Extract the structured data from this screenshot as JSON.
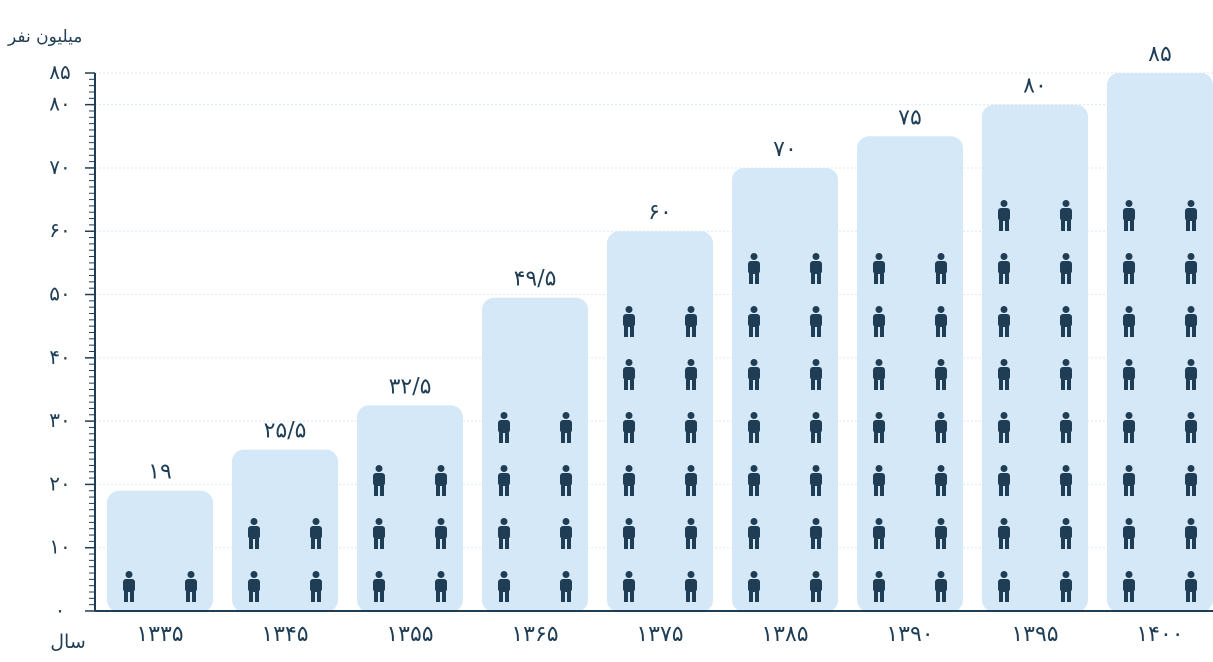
{
  "chart_data": {
    "type": "bar",
    "ylabel": "میلیون نفر",
    "xlabel": "سال",
    "categories": [
      "۱۳۳۵",
      "۱۳۴۵",
      "۱۳۵۵",
      "۱۳۶۵",
      "۱۳۷۵",
      "۱۳۸۵",
      "۱۳۹۰",
      "۱۳۹۵",
      "۱۴۰۰"
    ],
    "values": [
      19,
      25.5,
      32.5,
      49.5,
      60,
      70,
      75,
      80,
      85
    ],
    "value_labels": [
      "۱۹",
      "۲۵/۵",
      "۳۲/۵",
      "۴۹/۵",
      "۶۰",
      "۷۰",
      "۷۵",
      "۸۰",
      "۸۵"
    ],
    "yticks": [
      0,
      10,
      20,
      30,
      40,
      50,
      60,
      70,
      80,
      85
    ],
    "ytick_labels": [
      "۰",
      "۱۰",
      "۲۰",
      "۳۰",
      "۴۰",
      "۵۰",
      "۶۰",
      "۷۰",
      "۸۰",
      "۸۵"
    ],
    "ylim": [
      0,
      85
    ],
    "grid": true,
    "colors": {
      "bar": "#d5e8f8",
      "person": "#1f3d55",
      "axis": "#1f3d55",
      "grid": "#dce9f3"
    },
    "icon": "person-icon"
  }
}
